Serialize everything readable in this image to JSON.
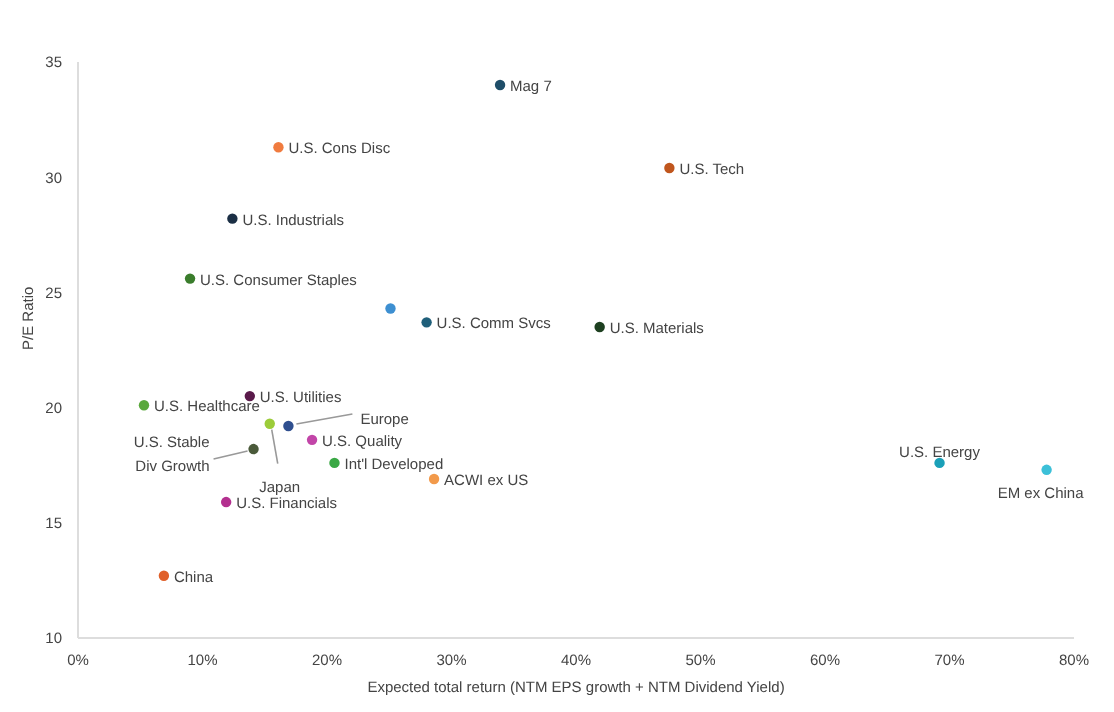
{
  "chart_data": {
    "type": "scatter",
    "xlabel": "Expected total return (NTM EPS growth + NTM Dividend Yield)",
    "ylabel": "P/E Ratio",
    "x": [
      33.9,
      16.1,
      12.4,
      9.0,
      25.1,
      28.0,
      47.5,
      41.9,
      13.8,
      5.3,
      15.4,
      16.9,
      18.8,
      14.1,
      20.6,
      28.6,
      11.9,
      6.9,
      69.2,
      77.8
    ],
    "values": [
      34.0,
      31.3,
      28.2,
      25.6,
      24.3,
      23.7,
      30.4,
      23.5,
      20.5,
      20.1,
      19.3,
      19.2,
      18.6,
      18.2,
      17.6,
      16.9,
      15.9,
      12.7,
      17.6,
      17.3
    ],
    "colors": [
      "#1f4e69",
      "#f07b3f",
      "#1b2f45",
      "#3a7d2c",
      "#3d8fd1",
      "#1f5f7a",
      "#c0561d",
      "#1e4020",
      "#5a1a4a",
      "#5aa83c",
      "#9ccc3a",
      "#2f4f8f",
      "#c245a8",
      "#4a5a3a",
      "#3aa845",
      "#f29a4b",
      "#b3308f",
      "#e0602a",
      "#1aa0b8",
      "#3cc0d8"
    ],
    "xlim": [
      0,
      80
    ],
    "xticks": [
      {
        "value": 0,
        "label": "0%"
      },
      {
        "value": 10,
        "label": "10%"
      },
      {
        "value": 20,
        "label": "20%"
      },
      {
        "value": 30,
        "label": "30%"
      },
      {
        "value": 40,
        "label": "40%"
      },
      {
        "value": 50,
        "label": "50%"
      },
      {
        "value": 60,
        "label": "60%"
      },
      {
        "value": 70,
        "label": "70%"
      },
      {
        "value": 80,
        "label": "80%"
      }
    ],
    "ylim": [
      10,
      35
    ],
    "yticks": [
      10,
      15,
      20,
      25,
      30,
      35
    ],
    "grid": false,
    "legend": false,
    "marker": "circle",
    "annotations": [
      {
        "text": "Mag 7",
        "x": 33.9,
        "y": 34.0
      },
      {
        "text": "U.S. Cons Disc",
        "x": 16.1,
        "y": 31.3
      },
      {
        "text": "U.S. Industrials",
        "x": 12.4,
        "y": 28.2
      },
      {
        "text": "U.S. Consumer Staples",
        "x": 9.0,
        "y": 25.6
      },
      {
        "text": "U.S. Comm Svcs",
        "x": 28.0,
        "y": 23.7
      },
      {
        "text": "U.S. Tech",
        "x": 47.5,
        "y": 30.4
      },
      {
        "text": "U.S. Materials",
        "x": 41.9,
        "y": 23.5
      },
      {
        "text": "U.S. Utilities",
        "x": 13.8,
        "y": 20.5
      },
      {
        "text": "U.S. Healthcare",
        "x": 5.3,
        "y": 20.1
      },
      {
        "text": "Japan",
        "x": 15.4,
        "y": 19.3
      },
      {
        "text": "Europe",
        "x": 16.9,
        "y": 19.2
      },
      {
        "text": "U.S. Quality",
        "x": 18.8,
        "y": 18.6
      },
      {
        "text": "U.S. Stable Div Growth",
        "x": 14.1,
        "y": 18.2
      },
      {
        "text": "Int'l Developed",
        "x": 20.6,
        "y": 17.6
      },
      {
        "text": "ACWI ex US",
        "x": 28.6,
        "y": 16.9
      },
      {
        "text": "U.S. Financials",
        "x": 11.9,
        "y": 15.9
      },
      {
        "text": "China",
        "x": 6.9,
        "y": 12.7
      },
      {
        "text": "U.S. Energy",
        "x": 69.2,
        "y": 17.6
      },
      {
        "text": "EM ex China",
        "x": 77.8,
        "y": 17.3
      }
    ]
  }
}
